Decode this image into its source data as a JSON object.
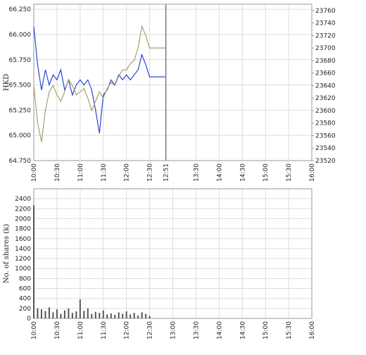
{
  "chart_data": [
    {
      "type": "line",
      "ylabel": "HKD",
      "x": [
        "10:00",
        "10:05",
        "10:10",
        "10:15",
        "10:20",
        "10:25",
        "10:30",
        "10:35",
        "10:40",
        "10:45",
        "10:50",
        "10:55",
        "11:00",
        "11:05",
        "11:10",
        "11:15",
        "11:20",
        "11:25",
        "11:30",
        "11:35",
        "11:40",
        "11:45",
        "11:50",
        "11:55",
        "12:00",
        "12:05",
        "12:10",
        "12:15",
        "12:20",
        "12:25",
        "12:30",
        "12:35",
        "12:40",
        "12:45",
        "12:50"
      ],
      "series": [
        {
          "color": "#2a45d8",
          "values": [
            66.08,
            65.7,
            65.45,
            65.65,
            65.5,
            65.6,
            65.55,
            65.65,
            65.45,
            65.55,
            65.4,
            65.5,
            65.55,
            65.5,
            65.55,
            65.45,
            65.25,
            65.02,
            65.4,
            65.45,
            65.55,
            65.5,
            65.6,
            65.55,
            65.6,
            65.55,
            65.6,
            65.65,
            65.8,
            65.7,
            65.58,
            65.58,
            65.58,
            65.58,
            65.58
          ]
        },
        {
          "color": "#a3a36a",
          "axis": "y2",
          "values": [
            23640,
            23580,
            23550,
            23600,
            23630,
            23640,
            23625,
            23615,
            23630,
            23650,
            23640,
            23625,
            23630,
            23635,
            23620,
            23600,
            23615,
            23630,
            23620,
            23635,
            23645,
            23640,
            23655,
            23665,
            23665,
            23675,
            23680,
            23700,
            23735,
            23720,
            23700,
            23700,
            23700,
            23700,
            23700
          ]
        }
      ],
      "xlim": [
        "10:00",
        "16:00"
      ],
      "xticks": [
        "10:00",
        "10:30",
        "11:00",
        "11:30",
        "12:00",
        "12:30",
        "12:51",
        "13:30",
        "14:00",
        "14:30",
        "15:00",
        "15:30",
        "16:00"
      ],
      "now": "12:51",
      "ylim": [
        64.75,
        66.3
      ],
      "yticks": [
        {
          "value": 64.75,
          "label": "64.750"
        },
        {
          "value": 65,
          "label": "65.000"
        },
        {
          "value": 65.25,
          "label": "65.250"
        },
        {
          "value": 65.5,
          "label": "65.500"
        },
        {
          "value": 65.75,
          "label": "65.750"
        },
        {
          "value": 66,
          "label": "66.000"
        },
        {
          "value": 66.25,
          "label": "66.250"
        }
      ],
      "y2lim": [
        23520,
        23770
      ],
      "y2ticks": [
        23520,
        23540,
        23560,
        23580,
        23600,
        23620,
        23640,
        23660,
        23680,
        23700,
        23720,
        23740,
        23760
      ],
      "grid": true
    },
    {
      "type": "bar",
      "ylabel": "No. of shares (k)",
      "color": "#555555",
      "x": [
        "10:00",
        "10:05",
        "10:10",
        "10:15",
        "10:20",
        "10:25",
        "10:30",
        "10:35",
        "10:40",
        "10:45",
        "10:50",
        "10:55",
        "11:00",
        "11:05",
        "11:10",
        "11:15",
        "11:20",
        "11:25",
        "11:30",
        "11:35",
        "11:40",
        "11:45",
        "11:50",
        "11:55",
        "12:00",
        "12:05",
        "12:10",
        "12:15",
        "12:20",
        "12:25",
        "12:30"
      ],
      "values": [
        2270,
        200,
        180,
        150,
        220,
        120,
        180,
        90,
        160,
        200,
        110,
        140,
        380,
        150,
        200,
        90,
        130,
        110,
        160,
        80,
        100,
        70,
        120,
        90,
        140,
        80,
        110,
        60,
        120,
        90,
        50
      ],
      "xlim": [
        "10:00",
        "16:00"
      ],
      "xticks": [
        "10:00",
        "10:30",
        "11:00",
        "11:30",
        "12:00",
        "12:30",
        "13:00",
        "13:30",
        "14:00",
        "14:30",
        "15:00",
        "15:30",
        "16:00"
      ],
      "ylim": [
        0,
        2600
      ],
      "yticks": [
        0,
        200,
        400,
        600,
        800,
        1000,
        1200,
        1400,
        1600,
        1800,
        2000,
        2200,
        2400
      ],
      "grid": true
    }
  ]
}
